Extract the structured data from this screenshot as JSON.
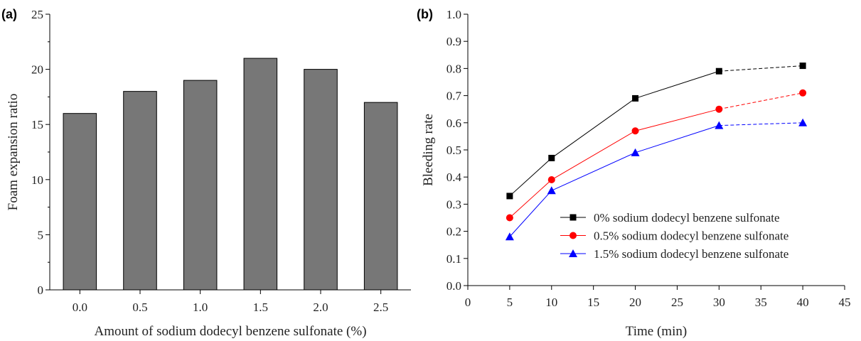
{
  "chart_data": [
    {
      "type": "bar",
      "panel_label": "(a)",
      "categories": [
        "0.0",
        "0.5",
        "1.0",
        "1.5",
        "2.0",
        "2.5"
      ],
      "values": [
        16,
        18,
        19,
        21,
        20,
        17
      ],
      "xlabel": "Amount of sodium dodecyl benzene sulfonate (%)",
      "ylabel": "Foam expansion ratio",
      "ylim": [
        0,
        25
      ],
      "yticks": [
        0,
        5,
        10,
        15,
        20,
        25
      ],
      "bar_color": "#777777",
      "grid": false
    },
    {
      "type": "line",
      "panel_label": "(b)",
      "xlabel": "Time (min)",
      "ylabel": "Bleeding rate",
      "xlim": [
        0,
        45
      ],
      "ylim": [
        0.0,
        1.0
      ],
      "xticks": [
        0,
        5,
        10,
        15,
        20,
        25,
        30,
        35,
        40,
        45
      ],
      "yticks": [
        "0.0",
        "0.1",
        "0.2",
        "0.3",
        "0.4",
        "0.5",
        "0.6",
        "0.7",
        "0.8",
        "0.9",
        "1.0"
      ],
      "legend_position": "bottom-right",
      "grid": false,
      "series": [
        {
          "name": "0% sodium dodecyl benzene sulfonate",
          "color": "#000000",
          "marker": "square",
          "x": [
            5,
            10,
            20,
            30,
            40
          ],
          "y": [
            0.33,
            0.47,
            0.69,
            0.79,
            0.81
          ]
        },
        {
          "name": "0.5% sodium dodecyl benzene sulfonate",
          "color": "#ff0000",
          "marker": "circle",
          "x": [
            5,
            10,
            20,
            30,
            40
          ],
          "y": [
            0.25,
            0.39,
            0.57,
            0.65,
            0.71
          ]
        },
        {
          "name": "1.5% sodium dodecyl benzene sulfonate",
          "color": "#0000ff",
          "marker": "triangle",
          "x": [
            5,
            10,
            20,
            30,
            40
          ],
          "y": [
            0.18,
            0.35,
            0.49,
            0.59,
            0.6
          ]
        }
      ]
    }
  ]
}
